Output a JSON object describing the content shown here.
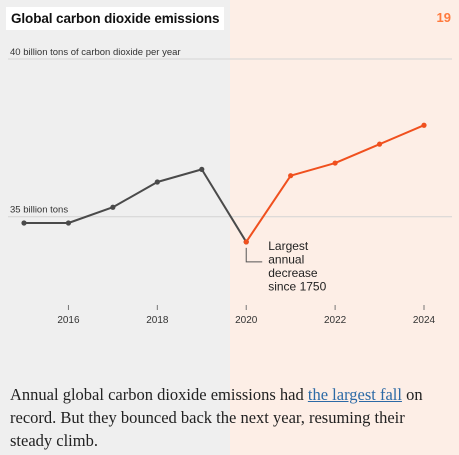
{
  "header": {
    "title": "Global carbon dioxide emissions",
    "page_number": "19"
  },
  "colors": {
    "left_bg": "#efefef",
    "right_bg": "#fdeee6",
    "pre_series": "#4a4a4a",
    "post_series": "#f0501e",
    "accent": "#ff7a3d"
  },
  "chart_data": {
    "type": "line",
    "title": "Global carbon dioxide emissions",
    "ylabel": "",
    "y_tick_labels": [
      {
        "value": 40,
        "label": "40 billion tons of carbon dioxide per year"
      },
      {
        "value": 35,
        "label": "35 billion tons"
      }
    ],
    "x_ticks": [
      2016,
      2018,
      2020,
      2022,
      2024
    ],
    "xlim": [
      2014.9,
      2025.2
    ],
    "ylim": [
      32.2,
      40
    ],
    "series": [
      {
        "color": "#4a4a4a",
        "x": [
          2015,
          2016,
          2017,
          2018,
          2019,
          2020
        ],
        "y": [
          34.8,
          34.8,
          35.3,
          36.1,
          36.5,
          34.2
        ]
      },
      {
        "color": "#f0501e",
        "x": [
          2020,
          2021,
          2022,
          2023,
          2024
        ],
        "y": [
          34.2,
          36.3,
          36.7,
          37.3,
          37.9
        ]
      }
    ],
    "annotation": {
      "x": 2020,
      "y": 34.2,
      "lines": [
        "Largest",
        "annual",
        "decrease",
        "since 1750"
      ]
    },
    "grid": true
  },
  "caption": {
    "before": "Annual global carbon dioxide emissions had ",
    "link": "the largest fall",
    "after": " on record. But they bounced back the next year, resuming their steady climb."
  }
}
